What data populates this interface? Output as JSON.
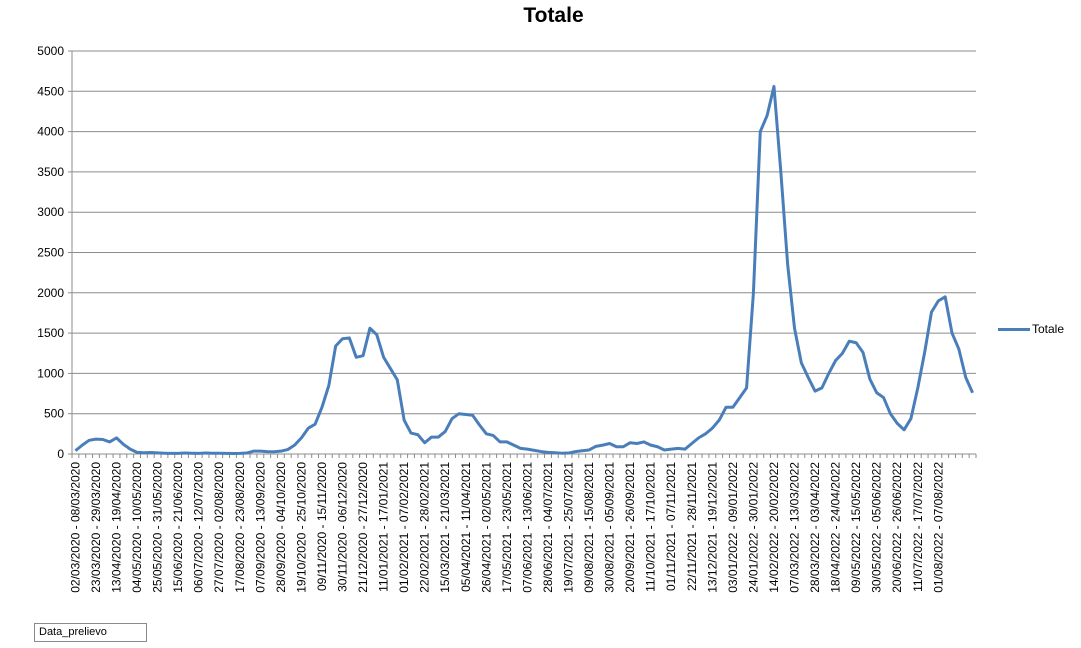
{
  "chart_data": {
    "type": "line",
    "title": "Totale",
    "xlabel": "",
    "ylabel": "",
    "ylim": [
      0,
      5000
    ],
    "yticks": [
      0,
      500,
      1000,
      1500,
      2000,
      2500,
      3000,
      3500,
      4000,
      4500,
      5000
    ],
    "grid": true,
    "legend_position": "right",
    "series": [
      {
        "name": "Totale",
        "color": "#4A7EBB",
        "values": [
          40,
          110,
          170,
          185,
          180,
          150,
          200,
          120,
          60,
          20,
          15,
          18,
          14,
          10,
          8,
          8,
          12,
          10,
          8,
          12,
          10,
          10,
          8,
          6,
          8,
          12,
          35,
          35,
          30,
          28,
          35,
          55,
          110,
          200,
          320,
          370,
          580,
          850,
          1340,
          1430,
          1440,
          1200,
          1220,
          1560,
          1480,
          1200,
          1060,
          920,
          420,
          260,
          240,
          140,
          210,
          210,
          280,
          440,
          500,
          490,
          480,
          360,
          250,
          230,
          150,
          150,
          110,
          70,
          60,
          45,
          30,
          20,
          15,
          10,
          12,
          30,
          40,
          50,
          95,
          110,
          130,
          90,
          90,
          140,
          130,
          150,
          110,
          90,
          50,
          60,
          70,
          60,
          130,
          200,
          250,
          320,
          420,
          580,
          580,
          700,
          820,
          2000,
          4000,
          4200,
          4560,
          3500,
          2350,
          1560,
          1130,
          950,
          780,
          820,
          1000,
          1160,
          1250,
          1400,
          1380,
          1260,
          930,
          760,
          700,
          500,
          380,
          300,
          440,
          820,
          1260,
          1760,
          1900,
          1950,
          1500,
          1300,
          950,
          760
        ]
      }
    ],
    "x_tick_labels": [
      "02/03/2020 - 08/03/2020",
      "23/03/2020 - 29/03/2020",
      "13/04/2020 - 19/04/2020",
      "04/05/2020 - 10/05/2020",
      "25/05/2020 - 31/05/2020",
      "15/06/2020 - 21/06/2020",
      "06/07/2020 - 12/07/2020",
      "27/07/2020 - 02/08/2020",
      "17/08/2020 - 23/08/2020",
      "07/09/2020 - 13/09/2020",
      "28/09/2020 - 04/10/2020",
      "19/10/2020 - 25/10/2020",
      "09/11/2020 - 15/11/2020",
      "30/11/2020 - 06/12/2020",
      "21/12/2020 - 27/12/2020",
      "11/01/2021 - 17/01/2021",
      "01/02/2021 - 07/02/2021",
      "22/02/2021 - 28/02/2021",
      "15/03/2021 - 21/03/2021",
      "05/04/2021 - 11/04/2021",
      "26/04/2021 - 02/05/2021",
      "17/05/2021 - 23/05/2021",
      "07/06/2021 - 13/06/2021",
      "28/06/2021 - 04/07/2021",
      "19/07/2021 - 25/07/2021",
      "09/08/2021 - 15/08/2021",
      "30/08/2021 - 05/09/2021",
      "20/09/2021 - 26/09/2021",
      "11/10/2021 - 17/10/2021",
      "01/11/2021 - 07/11/2021",
      "22/11/2021 - 28/11/2021",
      "13/12/2021 - 19/12/2021",
      "03/01/2022 - 09/01/2022",
      "24/01/2022 - 30/01/2022",
      "14/02/2022 - 20/02/2022",
      "07/03/2022 - 13/03/2022",
      "28/03/2022 - 03/04/2022",
      "18/04/2022 - 24/04/2022",
      "09/05/2022 - 15/05/2022",
      "30/05/2022 - 05/06/2022",
      "20/06/2022 - 26/06/2022",
      "11/07/2022 - 17/07/2022",
      "01/08/2022 - 07/08/2022"
    ],
    "x_tick_every": 3
  },
  "field_button": "Data_prelievo"
}
